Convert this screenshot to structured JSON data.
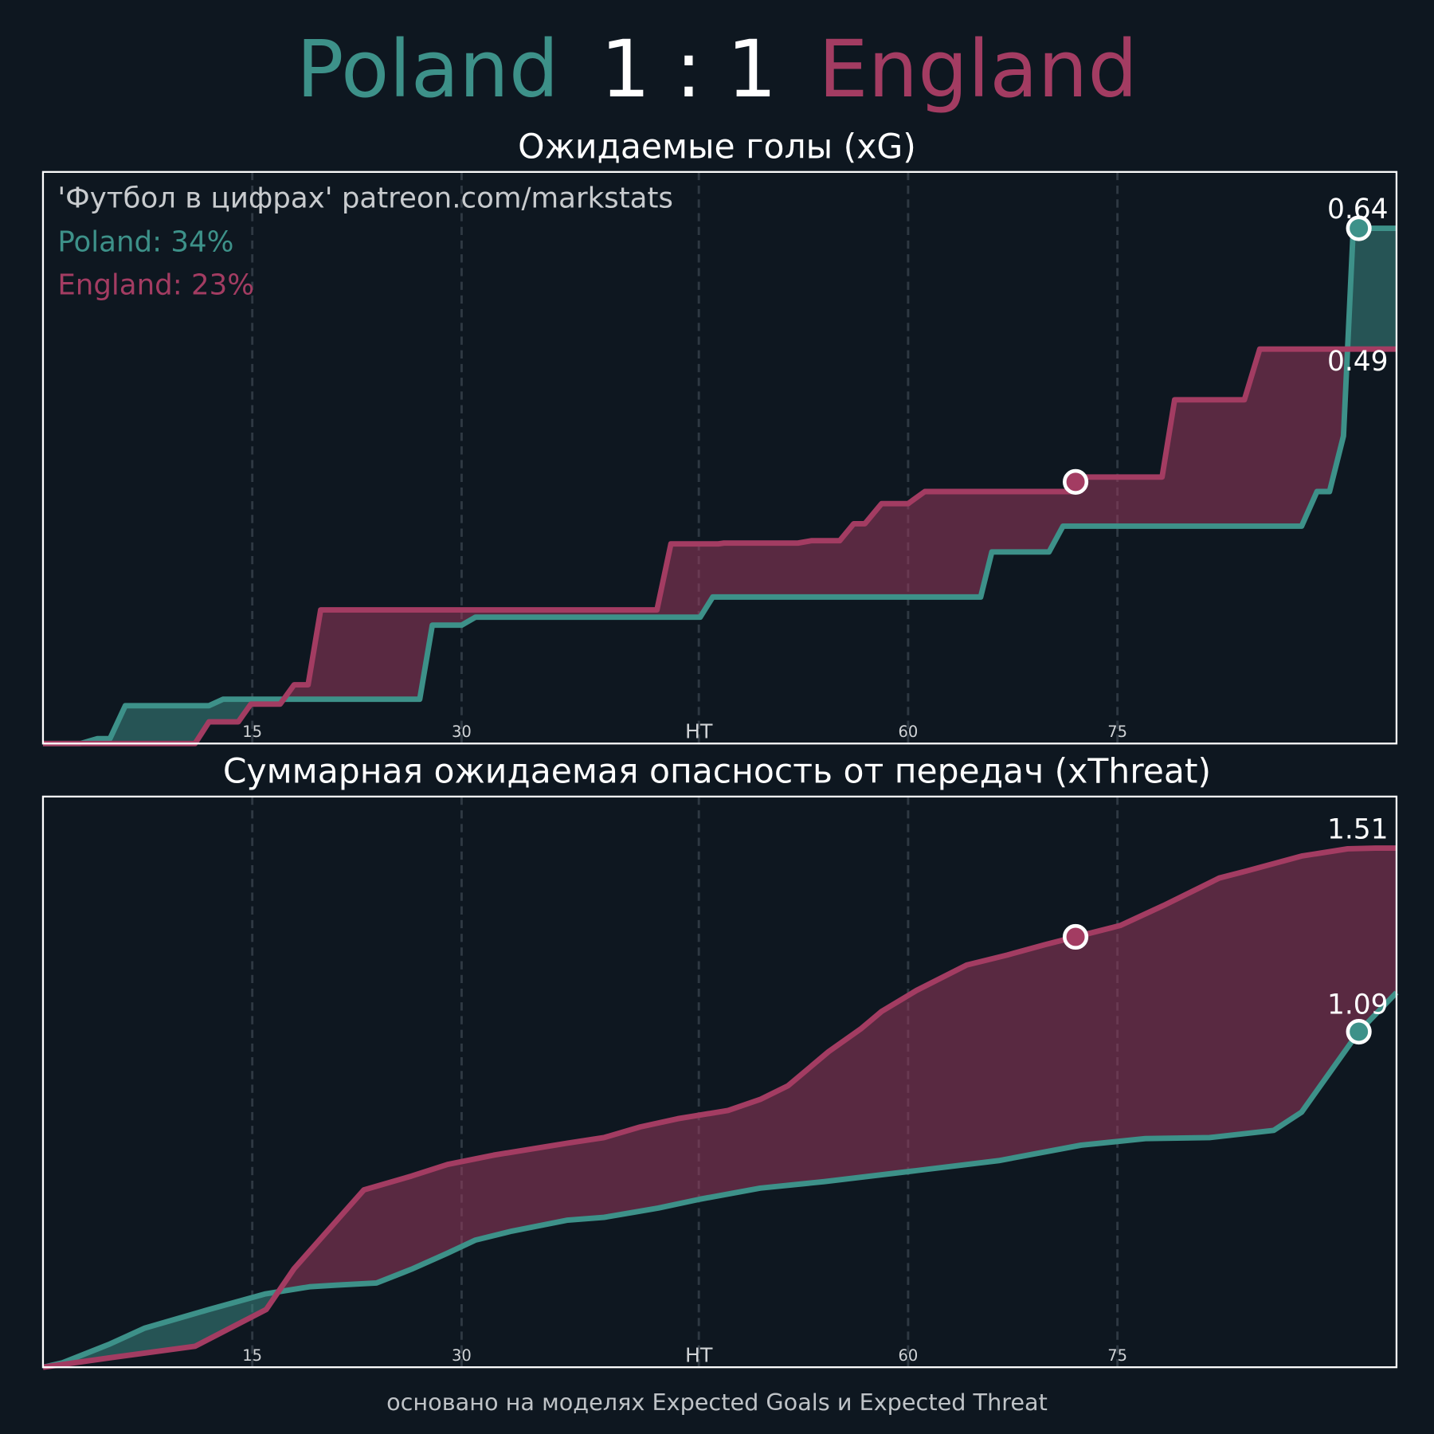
{
  "header": {
    "home": "Poland",
    "score": "1 : 1",
    "away": "England"
  },
  "annotations": {
    "source": "'Футбол в цифрах' patreon.com/markstats",
    "home_share": "Poland: 34%",
    "away_share": "England: 23%"
  },
  "footer": "основано на моделях Expected Goals и Expected Threat",
  "chart_data": [
    {
      "type": "line",
      "title": "Ожидаемые голы (xG)",
      "xlim": [
        0,
        97
      ],
      "ylim": [
        0,
        0.71
      ],
      "xticks": [
        15,
        30,
        {
          "value": 47,
          "label": "HT"
        },
        {
          "value": 62,
          "label": "60"
        },
        {
          "value": 77,
          "label": "75"
        }
      ],
      "grid": true,
      "series": [
        {
          "color": "#3d9189",
          "goal_minutes": [
            94.3
          ],
          "x": [
            0,
            2.7,
            3.9,
            4.8,
            5.9,
            11.9,
            12.9,
            27.0,
            27.9,
            30,
            31.0,
            47.1,
            48.0,
            67.2,
            68.0,
            72.1,
            73.1,
            90.2,
            91.3,
            92.2,
            93.2,
            93.9,
            97
          ],
          "values": [
            0,
            0,
            0.006,
            0.006,
            0.047,
            0.047,
            0.055,
            0.055,
            0.147,
            0.147,
            0.157,
            0.157,
            0.182,
            0.182,
            0.238,
            0.238,
            0.27,
            0.27,
            0.313,
            0.313,
            0.382,
            0.64,
            0.64
          ]
        },
        {
          "color": "#a33c62",
          "goal_minutes": [
            74
          ],
          "x": [
            0,
            10.9,
            11.9,
            14.0,
            14.9,
            17.0,
            18.0,
            19.0,
            19.9,
            44.0,
            45.0,
            48.4,
            48.8,
            54.1,
            55.1,
            57.1,
            58.1,
            58.9,
            60.1,
            62.0,
            63.2,
            73.8,
            74.1,
            80.2,
            81.1,
            86.1,
            87.2,
            97
          ],
          "values": [
            0,
            0,
            0.027,
            0.027,
            0.049,
            0.049,
            0.073,
            0.073,
            0.166,
            0.166,
            0.248,
            0.248,
            0.249,
            0.249,
            0.252,
            0.252,
            0.273,
            0.273,
            0.298,
            0.298,
            0.313,
            0.313,
            0.331,
            0.331,
            0.427,
            0.427,
            0.49,
            0.49
          ]
        }
      ]
    },
    {
      "type": "line",
      "title": "Суммарная ожидаемая опасность от передач (xThreat)",
      "xlim": [
        0,
        97
      ],
      "ylim": [
        0,
        1.66
      ],
      "xticks": [
        15,
        30,
        {
          "value": 47,
          "label": "HT"
        },
        {
          "value": 62,
          "label": "60"
        },
        {
          "value": 77,
          "label": "75"
        }
      ],
      "grid": true,
      "series": [
        {
          "color": "#3d9189",
          "goal_minutes": [
            94.3
          ],
          "x": [
            0,
            1.4,
            4.7,
            7.3,
            11.9,
            15.9,
            19.1,
            21.1,
            23.9,
            26.4,
            29.0,
            31.0,
            33.6,
            37.6,
            40.2,
            44.1,
            47.1,
            51.4,
            56.0,
            62.6,
            68.5,
            74.4,
            79.0,
            83.6,
            88.2,
            90.2,
            94.3,
            97
          ],
          "values": [
            0,
            0.013,
            0.066,
            0.114,
            0.168,
            0.213,
            0.234,
            0.239,
            0.245,
            0.285,
            0.332,
            0.37,
            0.396,
            0.428,
            0.436,
            0.463,
            0.489,
            0.521,
            0.54,
            0.572,
            0.601,
            0.646,
            0.665,
            0.668,
            0.689,
            0.742,
            0.976,
            1.09
          ]
        },
        {
          "color": "#a33c62",
          "goal_minutes": [
            74
          ],
          "x": [
            0,
            4.7,
            10.9,
            16.0,
            18.0,
            23.0,
            26.4,
            29.0,
            32.3,
            37.6,
            40.2,
            42.8,
            45.5,
            49.1,
            51.4,
            53.4,
            56.3,
            58.6,
            60.1,
            62.6,
            66.2,
            69.1,
            71.8,
            74.1,
            77.2,
            80.3,
            84.3,
            86.3,
            90.2,
            93.5,
            95.5,
            97
          ],
          "values": [
            0,
            0.027,
            0.061,
            0.168,
            0.287,
            0.516,
            0.556,
            0.59,
            0.617,
            0.652,
            0.668,
            0.699,
            0.723,
            0.747,
            0.779,
            0.819,
            0.918,
            0.984,
            1.035,
            1.096,
            1.17,
            1.199,
            1.229,
            1.253,
            1.285,
            1.343,
            1.423,
            1.444,
            1.487,
            1.508,
            1.51,
            1.51
          ]
        }
      ]
    }
  ]
}
